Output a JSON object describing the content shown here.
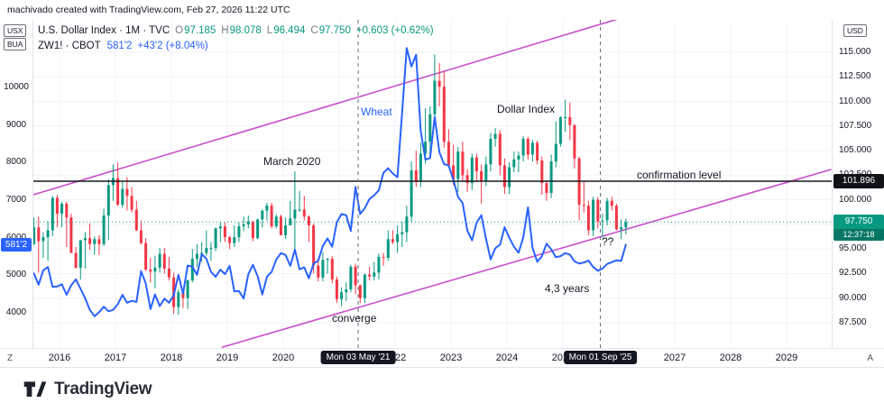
{
  "attribution": "machivado created with TradingView.com, Feb 27, 2026 11:22 UTC",
  "legend": {
    "dxy": {
      "title": "U.S. Dollar Index · 1M · TVC",
      "ohlc": [
        {
          "k": "O",
          "v": "97.185"
        },
        {
          "k": "H",
          "v": "98.078"
        },
        {
          "k": "L",
          "v": "96.494"
        },
        {
          "k": "C",
          "v": "97.750"
        }
      ],
      "change": "+0.603 (+0.62%)"
    },
    "wheat": {
      "title": "ZW1! · CBOT",
      "price": "581'2",
      "change": "+43'2 (+8.04%)"
    }
  },
  "left_axis": {
    "instrument_tags": [
      "USX",
      "BUA"
    ],
    "ticks": [
      "10000",
      "9000",
      "8000",
      "7000",
      "6000",
      "5000",
      "4000"
    ],
    "badge": "581'2",
    "corner_button": "Z"
  },
  "right_axis": {
    "currency_tag": "USD",
    "ticks": [
      "115.000",
      "112.500",
      "110.000",
      "107.500",
      "105.000",
      "102.500",
      "100.000",
      "97.500",
      "95.000",
      "92.500",
      "90.000",
      "87.500"
    ],
    "confirmation_badge": "101.896",
    "price_badge": "97.750",
    "countdown": "12:37:18",
    "corner_button": "A"
  },
  "time_axis": {
    "years": [
      "2016",
      "2017",
      "2018",
      "2019",
      "2020",
      "2021",
      "2022",
      "2023",
      "2024",
      "2025",
      "2026",
      "2027",
      "2028",
      "2029"
    ],
    "badges": [
      "Mon 03 May '21",
      "Mon 01 Sep '25"
    ]
  },
  "annotations": {
    "wheat_label": "Wheat",
    "dxy_label": "Dollar Index",
    "march_2020": "March 2020",
    "confirmation_level": "confirmation level",
    "converge": "converge",
    "years_span": "4,3 years",
    "question": "??"
  },
  "footer": {
    "brand": "TradingView"
  },
  "colors": {
    "up": "#089981",
    "down": "#F23645",
    "wheat": "#2962FF",
    "channel": "#c94fc9",
    "confirmation": "#16181d",
    "vline": "#6a6d78",
    "grid": "#f0f3fa"
  },
  "chart_data": {
    "type": "mixed",
    "title": "U.S. Dollar Index (1M, TVC) candlesticks vs Wheat ZW1! (CBOT) line",
    "interval": "1M",
    "start": {
      "year": 2015,
      "month": 7
    },
    "right_axis": {
      "label": "USD",
      "ticks": [
        115,
        112.5,
        110,
        107.5,
        105,
        102.5,
        100,
        97.5,
        95,
        92.5,
        90,
        87.5
      ],
      "range": [
        85.0,
        118.3
      ]
    },
    "left_axis": {
      "label": "USX",
      "ticks": [
        10000,
        9000,
        8000,
        7000,
        6000,
        5000,
        4000
      ],
      "range": [
        3200,
        11800
      ]
    },
    "levels": {
      "confirmation": 101.896,
      "last_price": 97.75,
      "wheat_last": 5812
    },
    "channel": {
      "upper": {
        "t1": 2015.5,
        "p1": 100.46,
        "t2": 2026.0,
        "p2": 118.41
      },
      "lower": {
        "t1": 2018.9,
        "p1": 85.0,
        "t2": 2029.8,
        "p2": 103.09
      }
    },
    "vlines": [
      2021.34,
      2025.67
    ],
    "vline_labels": [
      "Mon 03 May '21",
      "Mon 01 Sep '25"
    ],
    "candles": [
      [
        95.5,
        98.2,
        95.4,
        97.2
      ],
      [
        97.2,
        98.3,
        92.6,
        95.8
      ],
      [
        95.8,
        96.7,
        94.1,
        96.2
      ],
      [
        96.2,
        97.8,
        93.8,
        96.9
      ],
      [
        96.9,
        100.4,
        96.3,
        100.2
      ],
      [
        100.2,
        100.5,
        97.2,
        98.6
      ],
      [
        98.6,
        99.8,
        97.2,
        99.6
      ],
      [
        99.6,
        99.8,
        95.2,
        98.2
      ],
      [
        98.2,
        98.6,
        94.6,
        94.6
      ],
      [
        94.6,
        95.2,
        93.0,
        93.1
      ],
      [
        93.1,
        95.9,
        91.9,
        95.9
      ],
      [
        95.9,
        96.7,
        93.0,
        96.1
      ],
      [
        96.1,
        97.6,
        94.9,
        95.5
      ],
      [
        95.5,
        96.3,
        94.4,
        96.0
      ],
      [
        96.0,
        96.4,
        94.4,
        95.5
      ],
      [
        95.5,
        99.1,
        95.3,
        98.4
      ],
      [
        98.4,
        102.1,
        95.9,
        101.5
      ],
      [
        101.5,
        103.6,
        99.9,
        102.2
      ],
      [
        102.2,
        103.8,
        99.4,
        99.5
      ],
      [
        99.5,
        101.8,
        99.2,
        101.1
      ],
      [
        101.1,
        102.3,
        98.9,
        100.4
      ],
      [
        100.4,
        101.3,
        98.7,
        99.0
      ],
      [
        99.0,
        99.9,
        96.8,
        96.9
      ],
      [
        96.9,
        97.9,
        95.5,
        95.6
      ],
      [
        95.6,
        96.1,
        92.8,
        92.9
      ],
      [
        92.9,
        94.1,
        91.6,
        92.7
      ],
      [
        92.7,
        94.3,
        91.0,
        93.1
      ],
      [
        93.1,
        95.1,
        92.6,
        94.5
      ],
      [
        94.5,
        95.1,
        92.5,
        93.0
      ],
      [
        93.0,
        94.2,
        91.8,
        92.1
      ],
      [
        92.1,
        92.6,
        88.4,
        89.1
      ],
      [
        89.1,
        90.9,
        88.3,
        90.6
      ],
      [
        90.6,
        90.9,
        89.0,
        90.0
      ],
      [
        90.0,
        91.9,
        88.9,
        91.8
      ],
      [
        91.8,
        95.0,
        91.6,
        94.0
      ],
      [
        94.0,
        95.5,
        93.2,
        94.5
      ],
      [
        94.5,
        95.7,
        93.7,
        94.6
      ],
      [
        94.6,
        96.9,
        94.3,
        95.1
      ],
      [
        95.1,
        95.7,
        93.8,
        95.1
      ],
      [
        95.1,
        97.2,
        94.8,
        97.1
      ],
      [
        97.1,
        97.7,
        95.7,
        97.3
      ],
      [
        97.3,
        97.7,
        95.7,
        96.2
      ],
      [
        96.2,
        96.3,
        95.0,
        95.6
      ],
      [
        95.6,
        97.4,
        95.2,
        96.2
      ],
      [
        96.2,
        97.7,
        95.7,
        97.3
      ],
      [
        97.3,
        98.3,
        96.8,
        97.5
      ],
      [
        97.5,
        98.4,
        97.1,
        97.8
      ],
      [
        97.8,
        97.8,
        95.8,
        96.1
      ],
      [
        96.1,
        98.1,
        96.0,
        98.0
      ],
      [
        98.0,
        99.0,
        97.2,
        98.9
      ],
      [
        98.9,
        99.7,
        97.9,
        99.4
      ],
      [
        99.4,
        99.7,
        97.1,
        97.3
      ],
      [
        97.3,
        98.5,
        97.1,
        98.3
      ],
      [
        98.3,
        98.5,
        96.4,
        96.4
      ],
      [
        96.4,
        98.2,
        96.0,
        97.4
      ],
      [
        97.4,
        99.9,
        97.4,
        98.1
      ],
      [
        98.1,
        102.9,
        94.6,
        99.0
      ],
      [
        99.0,
        100.9,
        98.8,
        99.0
      ],
      [
        99.0,
        100.4,
        97.9,
        98.3
      ],
      [
        98.3,
        98.4,
        95.7,
        97.4
      ],
      [
        97.4,
        97.6,
        92.5,
        93.3
      ],
      [
        93.3,
        94.0,
        91.7,
        92.1
      ],
      [
        92.1,
        94.7,
        91.7,
        93.9
      ],
      [
        93.9,
        94.1,
        92.5,
        94.0
      ],
      [
        94.0,
        94.3,
        91.5,
        91.9
      ],
      [
        91.9,
        92.2,
        89.5,
        89.9
      ],
      [
        89.9,
        91.1,
        89.2,
        90.6
      ],
      [
        90.6,
        91.6,
        89.7,
        90.9
      ],
      [
        90.9,
        93.4,
        90.6,
        93.2
      ],
      [
        93.2,
        93.5,
        90.4,
        91.3
      ],
      [
        91.3,
        91.4,
        89.5,
        90.0
      ],
      [
        90.0,
        92.5,
        89.5,
        92.4
      ],
      [
        92.4,
        93.2,
        91.8,
        92.2
      ],
      [
        92.2,
        93.7,
        91.8,
        92.6
      ],
      [
        92.6,
        94.5,
        91.9,
        94.2
      ],
      [
        94.2,
        94.6,
        93.3,
        94.1
      ],
      [
        94.1,
        96.9,
        93.8,
        96.0
      ],
      [
        96.0,
        96.9,
        95.5,
        95.7
      ],
      [
        95.7,
        97.4,
        94.6,
        96.5
      ],
      [
        96.5,
        97.8,
        95.2,
        96.7
      ],
      [
        96.7,
        99.4,
        95.7,
        98.3
      ],
      [
        98.3,
        103.9,
        97.7,
        103.0
      ],
      [
        103.0,
        105.0,
        101.3,
        101.8
      ],
      [
        101.8,
        105.8,
        101.3,
        104.7
      ],
      [
        104.7,
        109.3,
        103.7,
        105.9
      ],
      [
        105.9,
        109.5,
        104.6,
        108.7
      ],
      [
        108.7,
        114.8,
        107.6,
        112.1
      ],
      [
        112.1,
        113.9,
        109.5,
        111.5
      ],
      [
        111.5,
        113.1,
        105.3,
        105.9
      ],
      [
        105.9,
        107.2,
        103.4,
        103.5
      ],
      [
        103.5,
        105.6,
        101.5,
        102.1
      ],
      [
        102.1,
        105.4,
        100.8,
        104.9
      ],
      [
        104.9,
        105.9,
        101.9,
        102.5
      ],
      [
        102.5,
        103.1,
        100.8,
        101.7
      ],
      [
        101.7,
        104.7,
        101.0,
        104.3
      ],
      [
        104.3,
        104.7,
        101.9,
        102.9
      ],
      [
        102.9,
        103.6,
        99.6,
        101.9
      ],
      [
        101.9,
        104.4,
        101.4,
        103.6
      ],
      [
        103.6,
        106.8,
        102.9,
        106.2
      ],
      [
        106.2,
        107.3,
        105.4,
        106.7
      ],
      [
        106.7,
        107.1,
        102.5,
        103.5
      ],
      [
        103.5,
        104.2,
        100.6,
        101.3
      ],
      [
        101.3,
        103.8,
        100.6,
        103.3
      ],
      [
        103.3,
        104.9,
        102.8,
        104.1
      ],
      [
        104.1,
        104.9,
        102.8,
        104.5
      ],
      [
        104.5,
        106.5,
        103.9,
        106.2
      ],
      [
        106.2,
        106.4,
        104.1,
        104.6
      ],
      [
        104.6,
        106.1,
        103.9,
        105.8
      ],
      [
        105.8,
        106.0,
        103.6,
        104.0
      ],
      [
        104.0,
        104.4,
        100.5,
        101.7
      ],
      [
        101.7,
        102.0,
        99.9,
        100.7
      ],
      [
        100.7,
        104.6,
        100.2,
        103.9
      ],
      [
        103.9,
        108.0,
        103.3,
        105.7
      ],
      [
        105.7,
        108.5,
        105.4,
        108.4
      ],
      [
        108.4,
        110.2,
        106.9,
        108.4
      ],
      [
        108.4,
        109.9,
        106.1,
        107.6
      ],
      [
        107.6,
        107.7,
        103.2,
        104.2
      ],
      [
        104.2,
        104.4,
        97.9,
        99.5
      ],
      [
        99.5,
        101.9,
        98.7,
        99.4
      ],
      [
        99.4,
        99.9,
        96.4,
        96.9
      ],
      [
        96.9,
        100.3,
        96.3,
        100.0
      ],
      [
        100.0,
        100.3,
        97.1,
        97.8
      ],
      [
        97.8,
        98.6,
        96.2,
        97.9
      ],
      [
        97.9,
        100.2,
        97.4,
        99.9
      ],
      [
        99.9,
        100.3,
        98.9,
        99.4
      ],
      [
        99.4,
        99.6,
        96.9,
        97.0
      ],
      [
        97.0,
        98.0,
        96.0,
        97.2
      ],
      [
        97.185,
        98.078,
        96.494,
        97.75
      ]
    ],
    "wheat_closes": [
      5050,
      4750,
      5130,
      5220,
      4690,
      4700,
      4760,
      4480,
      4730,
      4890,
      4640,
      4390,
      4080,
      3910,
      4020,
      4160,
      4040,
      4080,
      4230,
      4480,
      4270,
      4320,
      4290,
      5110,
      4780,
      4100,
      4490,
      4180,
      4380,
      4270,
      4470,
      5010,
      4510,
      5260,
      5230,
      5010,
      5560,
      5440,
      5090,
      4960,
      5150,
      5030,
      5250,
      4570,
      4580,
      4380,
      5030,
      5280,
      4980,
      4490,
      4960,
      5090,
      5420,
      5590,
      5540,
      5250,
      5680,
      5160,
      5210,
      4920,
      5310,
      5390,
      5780,
      5980,
      5760,
      6410,
      6630,
      6600,
      6180,
      7350,
      6630,
      6790,
      7030,
      7130,
      7260,
      7730,
      7850,
      7710,
      7610,
      9340,
      11050,
      10560,
      10870,
      8840,
      8080,
      8120,
      9210,
      8280,
      7960,
      7920,
      7540,
      7090,
      6920,
      6190,
      5930,
      6400,
      6600,
      5970,
      5420,
      5720,
      5810,
      6280,
      6000,
      5760,
      5600,
      6010,
      6810,
      5730,
      5360,
      5510,
      5840,
      5690,
      5480,
      5510,
      5590,
      5550,
      5370,
      5310,
      5340,
      5390,
      5220,
      5120,
      5180,
      5300,
      5350,
      5400,
      5380,
      5812
    ]
  }
}
